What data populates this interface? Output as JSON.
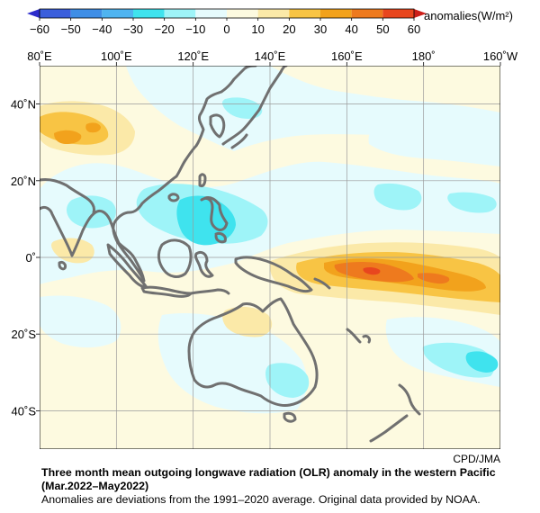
{
  "legend": {
    "unit_label": "anomalies(W/m²)",
    "tick_labels": [
      "−60",
      "−50",
      "−40",
      "−30",
      "−20",
      "−10",
      "0",
      "10",
      "20",
      "30",
      "40",
      "50",
      "60"
    ],
    "classes": [
      {
        "from": -60,
        "to": -50,
        "color": "#3b5fdc"
      },
      {
        "from": -50,
        "to": -40,
        "color": "#3f8ee6"
      },
      {
        "from": -40,
        "to": -30,
        "color": "#4fb4f0"
      },
      {
        "from": -30,
        "to": -20,
        "color": "#3fe3ee"
      },
      {
        "from": -20,
        "to": -10,
        "color": "#9ef4f8"
      },
      {
        "from": -10,
        "to": 0,
        "color": "#e6fbfd"
      },
      {
        "from": 0,
        "to": 10,
        "color": "#fdfae0"
      },
      {
        "from": 10,
        "to": 20,
        "color": "#fbe9a8"
      },
      {
        "from": 20,
        "to": 30,
        "color": "#f8c444"
      },
      {
        "from": 30,
        "to": 40,
        "color": "#f2a21c"
      },
      {
        "from": 40,
        "to": 50,
        "color": "#ee7a1e"
      },
      {
        "from": 50,
        "to": 60,
        "color": "#e8461e"
      }
    ],
    "below_min_color": "#2c2ccc",
    "above_max_color": "#cc1f1a"
  },
  "map": {
    "longitude_labels": [
      "80˚E",
      "100˚E",
      "120˚E",
      "140˚E",
      "160˚E",
      "180˚",
      "160˚W"
    ],
    "latitude_labels": [
      "40˚N",
      "20˚N",
      "0˚",
      "20˚S",
      "40˚S"
    ],
    "longitude_values": [
      80,
      100,
      120,
      140,
      160,
      180,
      200
    ],
    "latitude_values": [
      40,
      20,
      0,
      -20,
      -40
    ],
    "lon_range": [
      80,
      200
    ],
    "lat_range": [
      -50,
      50
    ],
    "grid": true,
    "coastline_color": "#707070",
    "background_color": "#fdfae0"
  },
  "credit": "CPD/JMA",
  "caption": {
    "title": "Three month mean outgoing longwave radiation (OLR) anomaly in the western Pacific",
    "period": "(Mar.2022–May2022)",
    "note": "Anomalies are deviations from the 1991–2020 average. Original data provided by NOAA."
  }
}
